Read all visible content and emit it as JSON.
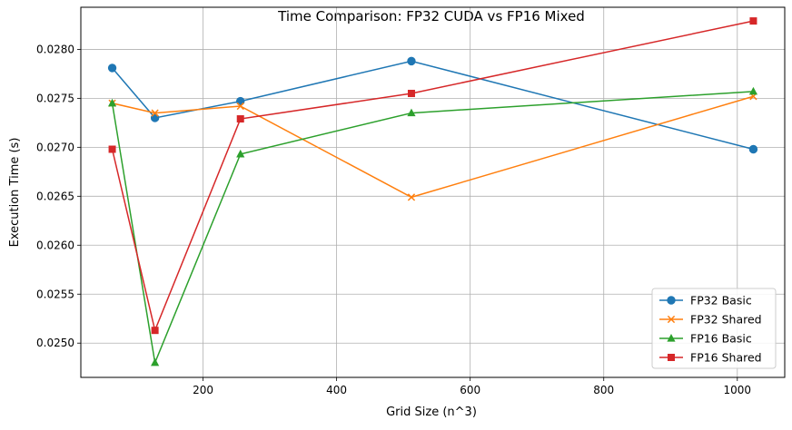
{
  "chart_data": {
    "type": "line",
    "title": "Time Comparison: FP32 CUDA vs FP16 Mixed",
    "xlabel": "Grid Size (n^3)",
    "ylabel": "Execution Time (s)",
    "x": [
      64,
      128,
      256,
      512,
      1024
    ],
    "xlim": [
      17,
      1071
    ],
    "ylim": [
      0.02465,
      0.02843
    ],
    "xticks": [
      200,
      400,
      600,
      800,
      1000
    ],
    "xtick_labels": [
      "200",
      "400",
      "600",
      "800",
      "1000"
    ],
    "yticks": [
      0.025,
      0.0255,
      0.026,
      0.0265,
      0.027,
      0.0275,
      0.028
    ],
    "ytick_labels": [
      "0.0250",
      "0.0255",
      "0.0260",
      "0.0265",
      "0.0270",
      "0.0275",
      "0.0280"
    ],
    "grid": true,
    "legend_position": "lower right",
    "series": [
      {
        "name": "FP32 Basic",
        "color": "#1f77b4",
        "marker": "circle",
        "values": [
          0.02781,
          0.0273,
          0.02747,
          0.02788,
          0.02698
        ]
      },
      {
        "name": "FP32 Shared",
        "color": "#ff7f0e",
        "marker": "x",
        "values": [
          0.02745,
          0.02735,
          0.02742,
          0.02649,
          0.02752
        ]
      },
      {
        "name": "FP16 Basic",
        "color": "#2ca02c",
        "marker": "triangle",
        "values": [
          0.02745,
          0.0248,
          0.02693,
          0.02735,
          0.02757
        ]
      },
      {
        "name": "FP16 Shared",
        "color": "#d62728",
        "marker": "square",
        "values": [
          0.02698,
          0.02513,
          0.02729,
          0.02755,
          0.02829
        ]
      }
    ]
  }
}
